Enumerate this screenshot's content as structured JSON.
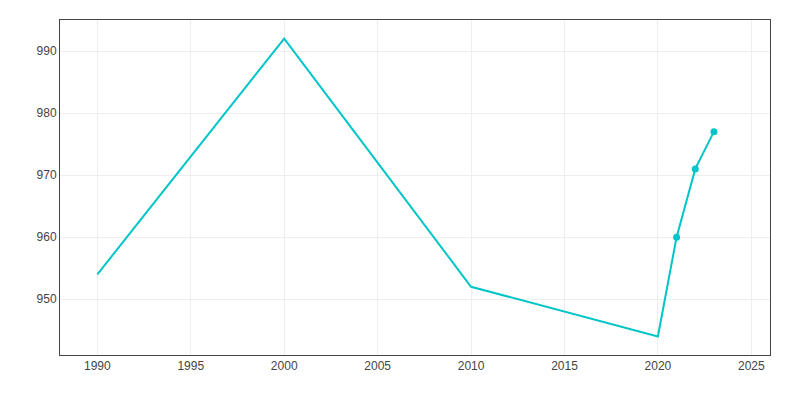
{
  "chart_data": {
    "type": "line",
    "x": [
      1990,
      2000,
      2010,
      2020,
      2021,
      2022,
      2023
    ],
    "series": [
      {
        "color": "#00C5C8",
        "values": [
          954,
          992,
          952,
          944,
          960,
          971,
          977
        ]
      },
      {
        "color": "#00C5C8",
        "values": [
          null,
          null,
          null,
          null,
          960,
          971,
          977
        ],
        "marker": "circle",
        "line_style": "none"
      }
    ],
    "xlim": [
      1988,
      2026
    ],
    "ylim": [
      941,
      995
    ],
    "xticks": [
      1990,
      1995,
      2000,
      2005,
      2010,
      2015,
      2020,
      2025
    ],
    "yticks": [
      950,
      960,
      970,
      980,
      990
    ],
    "grid": true
  }
}
